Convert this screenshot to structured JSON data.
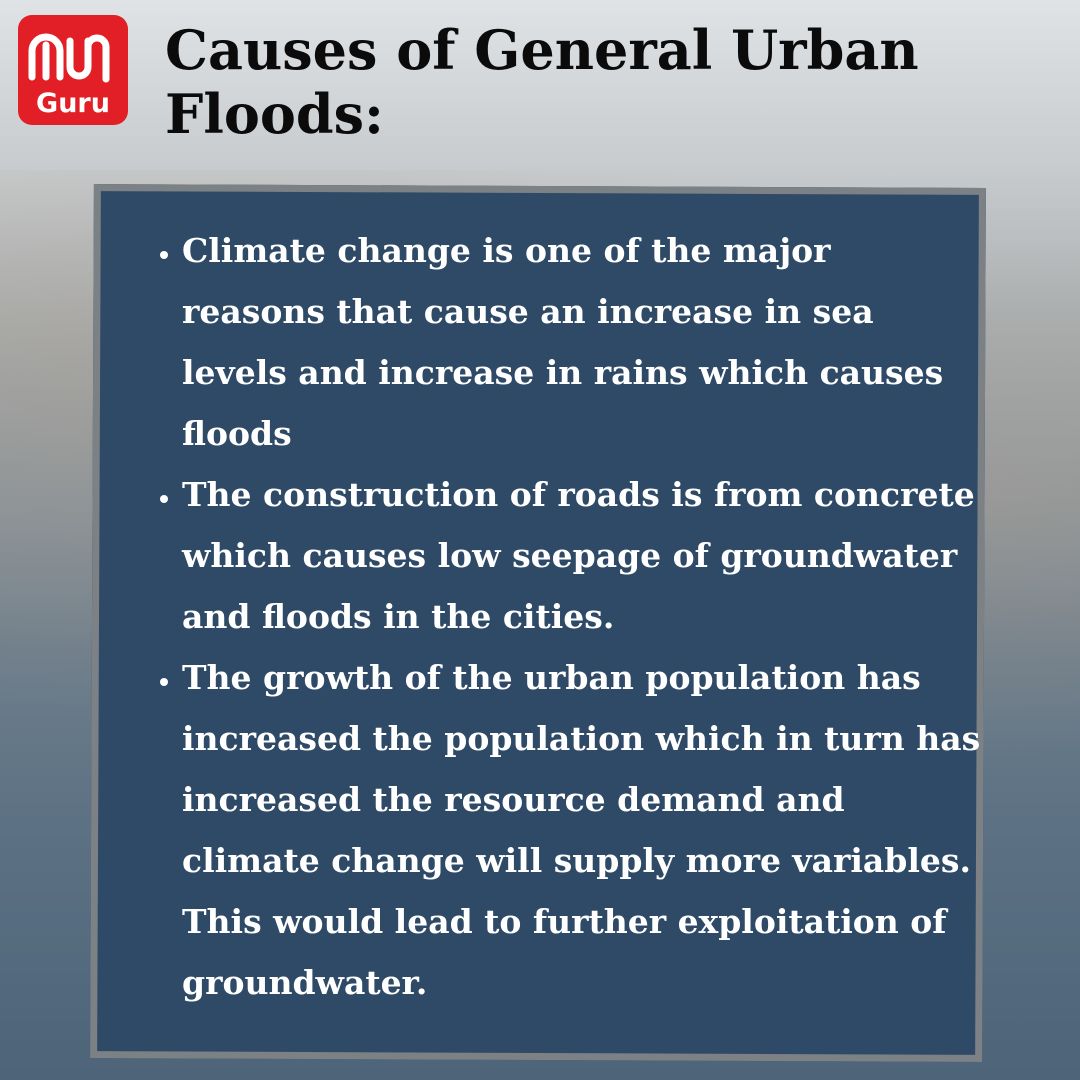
{
  "logo": {
    "text": "Guru"
  },
  "title": "Causes of General Urban Floods:",
  "bullets": [
    "Climate change is one of the major reasons that cause an increase in sea levels and increase in rains which causes floods",
    "The construction of roads is from concrete which causes low seepage of groundwater and floods in the cities.",
    "The growth of the urban population has increased the population which in turn has increased the resource demand and climate change will supply more variables. This would lead to further exploitation of groundwater."
  ]
}
